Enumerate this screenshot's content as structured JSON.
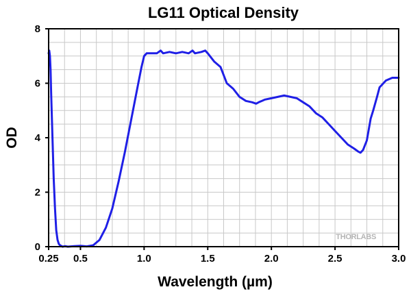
{
  "chart_data": {
    "type": "line",
    "title": "LG11 Optical Density",
    "xlabel": "Wavelength (µm)",
    "ylabel": "OD",
    "xlim": [
      0.25,
      3.0
    ],
    "ylim": [
      0,
      8
    ],
    "x_ticks": [
      0.25,
      0.5,
      1.0,
      1.5,
      2.0,
      2.5,
      3.0
    ],
    "x_tick_labels": [
      "0.25",
      "0.5",
      "1.0",
      "1.5",
      "2.0",
      "2.5",
      "3.0"
    ],
    "y_ticks": [
      0,
      2,
      4,
      6,
      8
    ],
    "y_tick_labels": [
      "0",
      "2",
      "4",
      "6",
      "8"
    ],
    "x_minor_step": 0.125,
    "y_minor_step": 0.5,
    "grid": true,
    "legend": "none",
    "watermark": "THORLABS",
    "line_color": "#1f1fe6",
    "series": [
      {
        "name": "LG11",
        "x": [
          0.25,
          0.255,
          0.26,
          0.265,
          0.27,
          0.28,
          0.29,
          0.3,
          0.31,
          0.32,
          0.33,
          0.34,
          0.36,
          0.38,
          0.4,
          0.45,
          0.5,
          0.55,
          0.6,
          0.65,
          0.7,
          0.75,
          0.8,
          0.85,
          0.9,
          0.95,
          0.98,
          1.0,
          1.02,
          1.05,
          1.1,
          1.13,
          1.15,
          1.2,
          1.25,
          1.3,
          1.35,
          1.38,
          1.4,
          1.45,
          1.48,
          1.5,
          1.55,
          1.6,
          1.65,
          1.7,
          1.75,
          1.8,
          1.85,
          1.88,
          1.9,
          1.95,
          2.0,
          2.05,
          2.1,
          2.15,
          2.2,
          2.25,
          2.3,
          2.35,
          2.4,
          2.45,
          2.5,
          2.55,
          2.6,
          2.65,
          2.68,
          2.7,
          2.72,
          2.75,
          2.78,
          2.8,
          2.83,
          2.85,
          2.9,
          2.95,
          3.0
        ],
        "y": [
          7.1,
          7.2,
          7.0,
          6.5,
          5.6,
          4.0,
          2.5,
          1.4,
          0.6,
          0.25,
          0.1,
          0.05,
          0.0,
          0.02,
          0.0,
          0.02,
          0.03,
          0.01,
          0.05,
          0.25,
          0.7,
          1.4,
          2.4,
          3.5,
          4.7,
          5.9,
          6.6,
          7.0,
          7.1,
          7.1,
          7.1,
          7.2,
          7.1,
          7.15,
          7.1,
          7.15,
          7.1,
          7.2,
          7.1,
          7.15,
          7.2,
          7.1,
          6.8,
          6.6,
          6.0,
          5.8,
          5.5,
          5.35,
          5.3,
          5.25,
          5.3,
          5.4,
          5.45,
          5.5,
          5.55,
          5.5,
          5.45,
          5.3,
          5.15,
          4.9,
          4.75,
          4.5,
          4.25,
          4.0,
          3.75,
          3.6,
          3.5,
          3.45,
          3.55,
          3.9,
          4.7,
          5.0,
          5.5,
          5.85,
          6.1,
          6.2,
          6.2
        ]
      }
    ]
  }
}
